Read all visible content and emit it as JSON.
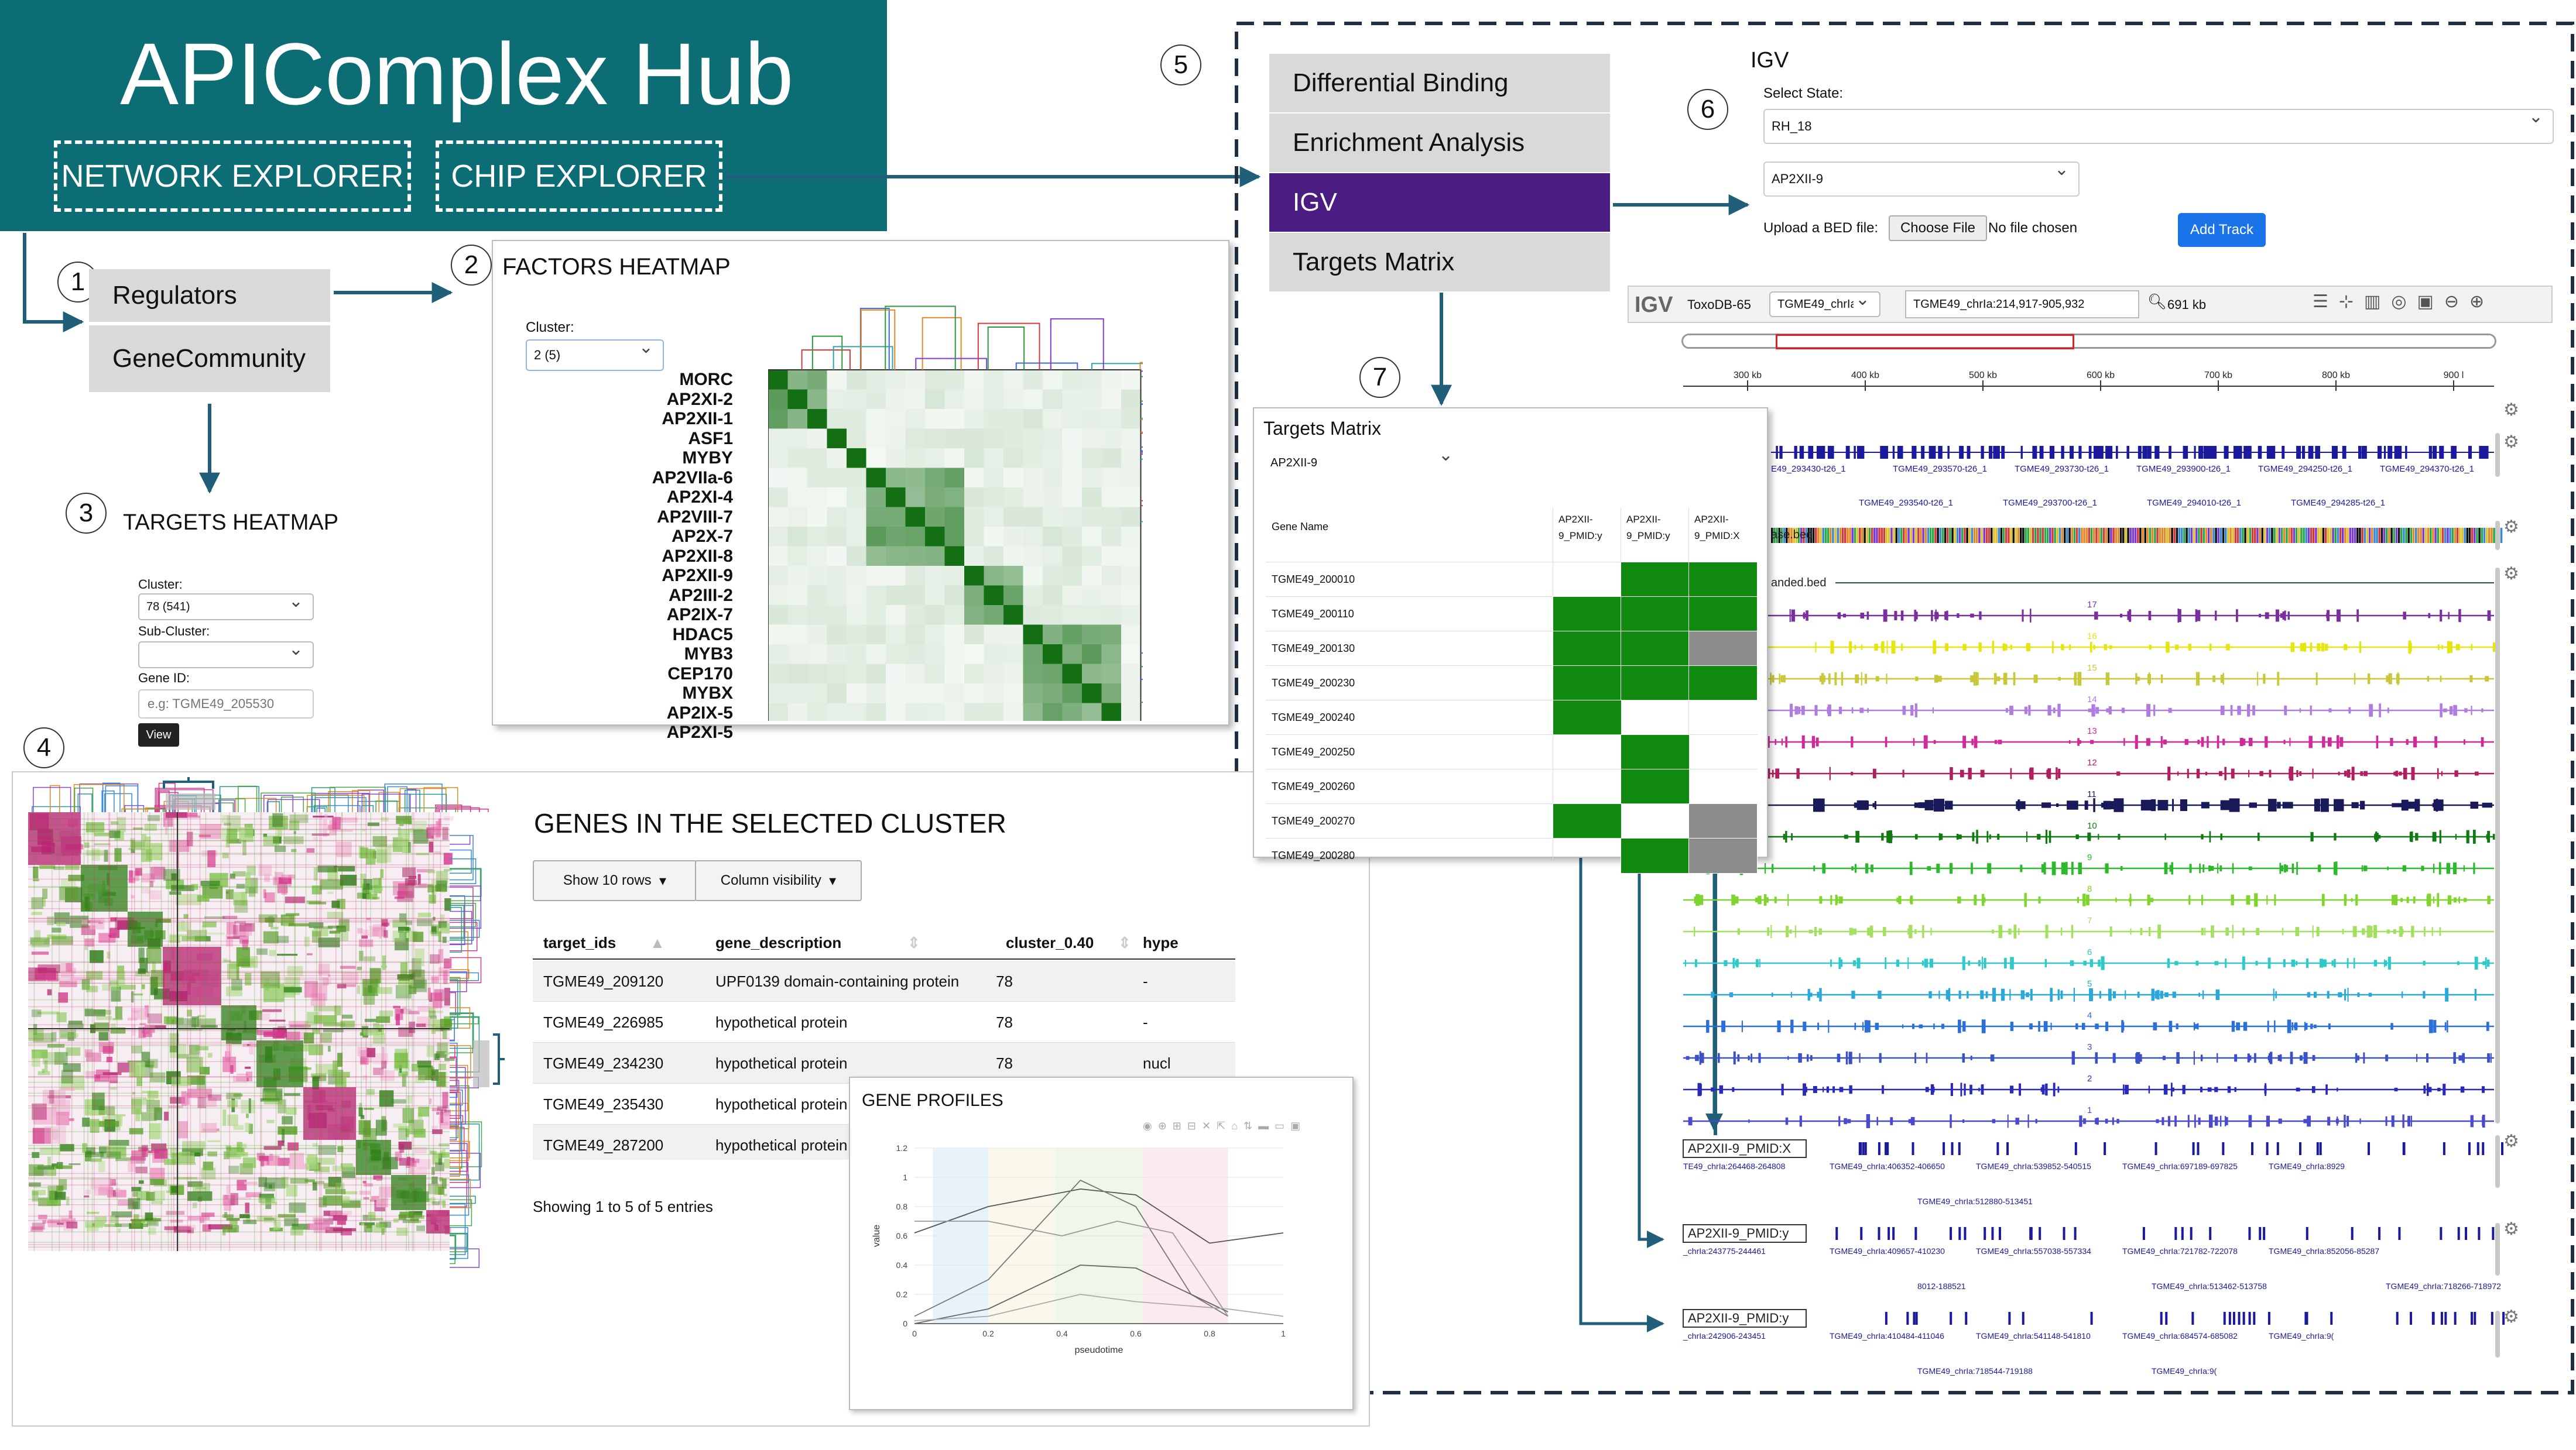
{
  "header": {
    "title": "APIComplex Hub",
    "nav": [
      "NETWORK EXPLORER",
      "CHIP EXPLORER"
    ],
    "color": "#0c6e74"
  },
  "steps": [
    "1",
    "2",
    "3",
    "4",
    "5",
    "6",
    "7"
  ],
  "network_menu": {
    "items": [
      "Regulators",
      "GeneCommunity"
    ]
  },
  "factors_heatmap": {
    "title": "FACTORS HEATMAP",
    "cluster_label": "Cluster:",
    "cluster_value": "2 (5)",
    "factors": [
      "MORC",
      "AP2XI-2",
      "AP2XII-1",
      "ASF1",
      "MYBY",
      "AP2VIIa-6",
      "AP2XI-4",
      "AP2VIII-7",
      "AP2X-7",
      "AP2XII-8",
      "AP2XII-9",
      "AP2III-2",
      "AP2IX-7",
      "HDAC5",
      "MYB3",
      "CEP170",
      "MYBX",
      "AP2IX-5",
      "AP2XI-5"
    ]
  },
  "targets_heatmap": {
    "title": "TARGETS HEATMAP",
    "cluster_label": "Cluster:",
    "cluster_value": "78 (541)",
    "subcluster_label": "Sub-Cluster:",
    "geneid_label": "Gene ID:",
    "geneid_placeholder": "e.g: TGME49_205530",
    "view_button": "View"
  },
  "genes_table": {
    "title": "GENES IN THE SELECTED CLUSTER",
    "show_rows_button": "Show 10 rows",
    "column_visibility_button": "Column visibility",
    "columns": [
      "target_ids",
      "gene_description",
      "cluster_0.40",
      "hype"
    ],
    "rows": [
      {
        "id": "TGME49_209120",
        "desc": "UPF0139 domain-containing protein",
        "cluster": "78",
        "extra": "-"
      },
      {
        "id": "TGME49_226985",
        "desc": "hypothetical protein",
        "cluster": "78",
        "extra": "-"
      },
      {
        "id": "TGME49_234230",
        "desc": "hypothetical protein",
        "cluster": "78",
        "extra": "nucl"
      },
      {
        "id": "TGME49_235430",
        "desc": "hypothetical protein",
        "cluster": "",
        "extra": ""
      },
      {
        "id": "TGME49_287200",
        "desc": "hypothetical protein",
        "cluster": "",
        "extra": ""
      }
    ],
    "footer": "Showing 1 to 5 of 5 entries"
  },
  "gene_profiles": {
    "title": "GENE PROFILES",
    "xlabel": "pseudotime",
    "ylabel": "value",
    "y_ticks": [
      "0",
      "0.2",
      "0.4",
      "0.6",
      "0.8",
      "1",
      "1.2"
    ],
    "x_ticks": [
      "0",
      "0.2",
      "0.4",
      "0.6",
      "0.8",
      "1"
    ]
  },
  "chip_menu": {
    "items": [
      "Differential Binding",
      "Enrichment Analysis",
      "IGV",
      "Targets Matrix"
    ],
    "active_index": 2,
    "active_color": "#4b1d82"
  },
  "igv": {
    "title": "IGV",
    "select_state_label": "Select State:",
    "state_value": "RH_18",
    "factor_value": "AP2XII-9",
    "upload_label": "Upload a BED file:",
    "choose_file_button": "Choose File",
    "no_file_text": "No file chosen",
    "add_track_button": "Add Track",
    "logo": "IGV",
    "genome": "ToxoDB-65",
    "chrom": "TGME49_chrIa",
    "locus": "TGME49_chrIa:214,917-905,932",
    "width_readout": "691 kb",
    "ruler_ticks": [
      "300 kb",
      "400 kb",
      "500 kb",
      "600 kb",
      "700 kb",
      "800 kb",
      "900 l"
    ],
    "gene_labels_row1": [
      "E49_293430-t26_1",
      "TGME49_293570-t26_1",
      "TGME49_293730-t26_1",
      "TGME49_293900-t26_1",
      "TGME49_294250-t26_1",
      "TGME49_294370-t26_1"
    ],
    "gene_labels_row2": [
      "TGME49_293540-t26_1",
      "TGME49_293700-t26_1",
      "TGME49_294010-t26_1",
      "TGME49_294285-t26_1"
    ],
    "track_names": [
      "ase.bed",
      "anded.bed"
    ],
    "track_numbers": [
      "17",
      "16",
      "15",
      "14",
      "13",
      "12",
      "11",
      "10",
      "9",
      "8",
      "7",
      "6",
      "5",
      "4",
      "3",
      "2",
      "1"
    ],
    "bed_tracks": [
      {
        "name": "AP2XII-9_PMID:X",
        "peaks_top": [
          "TE49_chrIa:264468-264808",
          "TGME49_chrIa:406352-406650",
          "TGME49_chrIa:539852-540515",
          "TGME49_chrIa:697189-697825",
          "TGME49_chrIa:8929"
        ],
        "peaks_bottom": [
          "TGME49_chrIa:512880-513451"
        ]
      },
      {
        "name": "AP2XII-9_PMID:y",
        "peaks_top": [
          "_chrIa:243775-244461",
          "TGME49_chrIa:409657-410230",
          "TGME49_chrIa:557038-557334",
          "TGME49_chrIa:721782-722078",
          "TGME49_chrIa:852056-85287"
        ],
        "peaks_bottom": [
          "8012-188521",
          "TGME49_chrIa:513462-513758",
          "TGME49_chrIa:718266-718972",
          "TGME49_chrIa:9("
        ]
      },
      {
        "name": "AP2XII-9_PMID:y",
        "peaks_top": [
          "_chrIa:242906-243451",
          "TGME49_chrIa:410484-411046",
          "TGME49_chrIa:541148-541810",
          "TGME49_chrIa:684574-685082",
          "TGME49_chrIa:9("
        ],
        "peaks_bottom": [
          "TGME49_chrIa:718544-719188",
          "TGME49_chrIa:9("
        ]
      }
    ],
    "track_colors": [
      "#7b2f9e",
      "#e5e510",
      "#c8c83a",
      "#b07ce0",
      "#d02a9a",
      "#b02060",
      "#1a1a5a",
      "#127a12",
      "#2db82d",
      "#7fd42d",
      "#a3e060",
      "#30c8c8",
      "#2aa8d8",
      "#2a70d8",
      "#3a50c8",
      "#2a2ab8",
      "#4a4ad0"
    ]
  },
  "targets_matrix": {
    "title": "Targets Matrix",
    "factor_value": "AP2XII-9",
    "gene_col": "Gene Name",
    "columns": [
      "AP2XII-9_PMID:y",
      "AP2XII-9_PMID:y",
      "AP2XII-9_PMID:X"
    ],
    "genes": [
      "TGME49_200010",
      "TGME49_200110",
      "TGME49_200130",
      "TGME49_200230",
      "TGME49_200240",
      "TGME49_200250",
      "TGME49_200260",
      "TGME49_200270",
      "TGME49_200280"
    ],
    "matrix": [
      [
        0,
        1,
        1
      ],
      [
        1,
        1,
        1
      ],
      [
        1,
        1,
        2
      ],
      [
        1,
        1,
        1
      ],
      [
        1,
        0,
        0
      ],
      [
        0,
        1,
        0
      ],
      [
        0,
        1,
        0
      ],
      [
        1,
        0,
        2
      ],
      [
        0,
        1,
        2
      ]
    ],
    "present_color": "#0f8a0f",
    "grey_color": "#8c8c8c"
  }
}
